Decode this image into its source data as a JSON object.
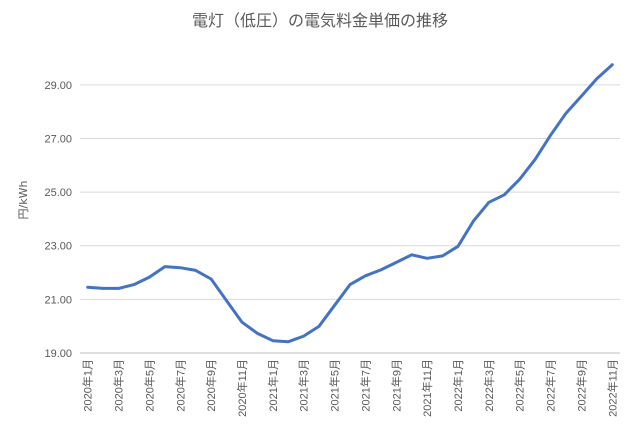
{
  "chart_data": {
    "type": "line",
    "title": "電灯（低圧）の電気料金単価の推移",
    "ylabel": "円/kWh",
    "xlabel": "",
    "ylim": [
      19.0,
      30.0
    ],
    "yticks": [
      "19.00",
      "21.00",
      "23.00",
      "25.00",
      "27.00",
      "29.00"
    ],
    "grid": true,
    "legend": "none",
    "color": "#4472C4",
    "x_tick_labels": [
      "2020年1月",
      "2020年3月",
      "2020年5月",
      "2020年7月",
      "2020年9月",
      "2020年11月",
      "2021年1月",
      "2021年3月",
      "2021年5月",
      "2021年7月",
      "2021年9月",
      "2021年11月",
      "2022年1月",
      "2022年3月",
      "2022年5月",
      "2022年7月",
      "2022年9月",
      "2022年11月"
    ],
    "categories": [
      "2020年1月",
      "2020年2月",
      "2020年3月",
      "2020年4月",
      "2020年5月",
      "2020年6月",
      "2020年7月",
      "2020年8月",
      "2020年9月",
      "2020年10月",
      "2020年11月",
      "2020年12月",
      "2021年1月",
      "2021年2月",
      "2021年3月",
      "2021年4月",
      "2021年5月",
      "2021年6月",
      "2021年7月",
      "2021年8月",
      "2021年9月",
      "2021年10月",
      "2021年11月",
      "2021年12月",
      "2022年1月",
      "2022年2月",
      "2022年3月",
      "2022年4月",
      "2022年5月",
      "2022年6月",
      "2022年7月",
      "2022年8月",
      "2022年9月",
      "2022年10月",
      "2022年11月"
    ],
    "values": [
      21.45,
      21.41,
      21.41,
      21.55,
      21.83,
      22.22,
      22.18,
      22.08,
      21.76,
      20.95,
      20.15,
      19.73,
      19.46,
      19.42,
      19.63,
      20.0,
      20.78,
      21.55,
      21.88,
      22.1,
      22.38,
      22.66,
      22.53,
      22.62,
      22.98,
      23.92,
      24.62,
      24.9,
      25.48,
      26.22,
      27.12,
      27.94,
      28.58,
      29.23,
      29.75
    ]
  }
}
